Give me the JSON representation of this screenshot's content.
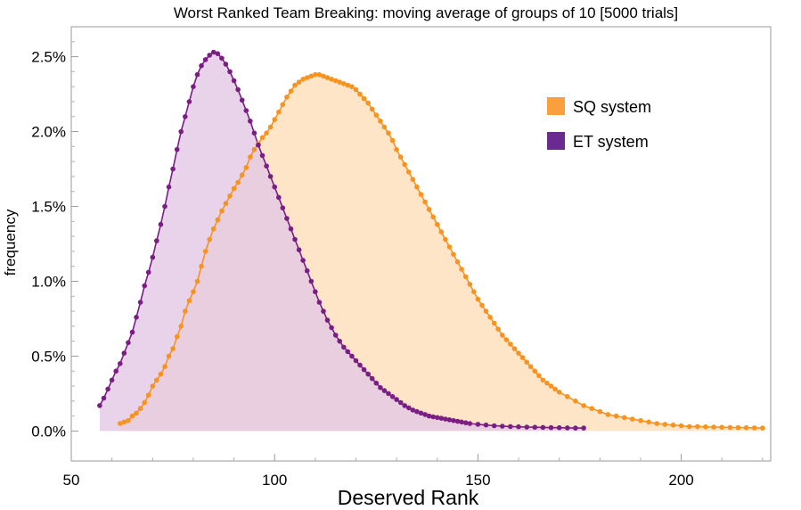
{
  "chart_data": {
    "type": "area",
    "title": "Worst Ranked Team Breaking: moving average of groups of 10   [5000 trials]",
    "xlabel": "Deserved Rank",
    "ylabel": "frequency",
    "xlim": [
      50,
      222
    ],
    "ylim": [
      -0.2,
      2.7
    ],
    "x_ticks": [
      50,
      100,
      150,
      200
    ],
    "y_ticks": [
      0.0,
      0.5,
      1.0,
      1.5,
      2.0,
      2.5
    ],
    "y_tick_labels": [
      "0.0%",
      "0.5%",
      "1.0%",
      "1.5%",
      "2.0%",
      "2.5%"
    ],
    "legend_position": "top-right",
    "series": [
      {
        "name": "SQ system",
        "color": "#F7931E",
        "legend_color": "#F9A03C",
        "fill": "#FFE5C8",
        "points": [
          [
            62,
            0.05
          ],
          [
            63,
            0.06
          ],
          [
            64,
            0.07
          ],
          [
            65,
            0.1
          ],
          [
            66,
            0.12
          ],
          [
            67,
            0.15
          ],
          [
            68,
            0.19
          ],
          [
            69,
            0.24
          ],
          [
            70,
            0.3
          ],
          [
            71,
            0.34
          ],
          [
            72,
            0.38
          ],
          [
            73,
            0.43
          ],
          [
            74,
            0.5
          ],
          [
            75,
            0.55
          ],
          [
            76,
            0.63
          ],
          [
            77,
            0.7
          ],
          [
            78,
            0.8
          ],
          [
            79,
            0.87
          ],
          [
            80,
            0.93
          ],
          [
            81,
            1.0
          ],
          [
            82,
            1.1
          ],
          [
            83,
            1.2
          ],
          [
            84,
            1.28
          ],
          [
            85,
            1.35
          ],
          [
            86,
            1.41
          ],
          [
            87,
            1.47
          ],
          [
            88,
            1.52
          ],
          [
            89,
            1.57
          ],
          [
            90,
            1.62
          ],
          [
            91,
            1.66
          ],
          [
            92,
            1.71
          ],
          [
            93,
            1.76
          ],
          [
            94,
            1.83
          ],
          [
            95,
            1.88
          ],
          [
            96,
            1.92
          ],
          [
            97,
            1.96
          ],
          [
            98,
            1.99
          ],
          [
            99,
            2.03
          ],
          [
            100,
            2.08
          ],
          [
            101,
            2.13
          ],
          [
            102,
            2.18
          ],
          [
            103,
            2.23
          ],
          [
            104,
            2.27
          ],
          [
            105,
            2.31
          ],
          [
            106,
            2.33
          ],
          [
            107,
            2.35
          ],
          [
            108,
            2.36
          ],
          [
            109,
            2.37
          ],
          [
            110,
            2.38
          ],
          [
            111,
            2.38
          ],
          [
            112,
            2.37
          ],
          [
            113,
            2.36
          ],
          [
            114,
            2.35
          ],
          [
            115,
            2.34
          ],
          [
            116,
            2.33
          ],
          [
            117,
            2.32
          ],
          [
            118,
            2.31
          ],
          [
            119,
            2.3
          ],
          [
            120,
            2.28
          ],
          [
            121,
            2.25
          ],
          [
            122,
            2.22
          ],
          [
            123,
            2.19
          ],
          [
            124,
            2.15
          ],
          [
            125,
            2.11
          ],
          [
            126,
            2.07
          ],
          [
            127,
            2.03
          ],
          [
            128,
            1.99
          ],
          [
            129,
            1.94
          ],
          [
            130,
            1.88
          ],
          [
            131,
            1.83
          ],
          [
            132,
            1.78
          ],
          [
            133,
            1.73
          ],
          [
            134,
            1.68
          ],
          [
            135,
            1.63
          ],
          [
            136,
            1.58
          ],
          [
            137,
            1.53
          ],
          [
            138,
            1.48
          ],
          [
            139,
            1.43
          ],
          [
            140,
            1.38
          ],
          [
            141,
            1.33
          ],
          [
            142,
            1.28
          ],
          [
            143,
            1.23
          ],
          [
            144,
            1.18
          ],
          [
            145,
            1.13
          ],
          [
            146,
            1.08
          ],
          [
            147,
            1.03
          ],
          [
            148,
            0.98
          ],
          [
            149,
            0.93
          ],
          [
            150,
            0.88
          ],
          [
            151,
            0.84
          ],
          [
            152,
            0.8
          ],
          [
            153,
            0.76
          ],
          [
            154,
            0.72
          ],
          [
            155,
            0.68
          ],
          [
            156,
            0.64
          ],
          [
            157,
            0.61
          ],
          [
            158,
            0.58
          ],
          [
            159,
            0.55
          ],
          [
            160,
            0.52
          ],
          [
            161,
            0.49
          ],
          [
            162,
            0.46
          ],
          [
            163,
            0.43
          ],
          [
            164,
            0.4
          ],
          [
            165,
            0.37
          ],
          [
            166,
            0.34
          ],
          [
            167,
            0.32
          ],
          [
            168,
            0.3
          ],
          [
            169,
            0.28
          ],
          [
            170,
            0.26
          ],
          [
            172,
            0.23
          ],
          [
            174,
            0.2
          ],
          [
            176,
            0.17
          ],
          [
            178,
            0.15
          ],
          [
            180,
            0.13
          ],
          [
            182,
            0.11
          ],
          [
            184,
            0.1
          ],
          [
            186,
            0.09
          ],
          [
            188,
            0.08
          ],
          [
            190,
            0.07
          ],
          [
            192,
            0.06
          ],
          [
            194,
            0.05
          ],
          [
            196,
            0.045
          ],
          [
            198,
            0.04
          ],
          [
            200,
            0.035
          ],
          [
            202,
            0.03
          ],
          [
            204,
            0.03
          ],
          [
            206,
            0.028
          ],
          [
            208,
            0.026
          ],
          [
            210,
            0.025
          ],
          [
            212,
            0.024
          ],
          [
            214,
            0.023
          ],
          [
            216,
            0.022
          ],
          [
            218,
            0.021
          ],
          [
            220,
            0.02
          ]
        ]
      },
      {
        "name": "ET system",
        "color": "#7B1E84",
        "legend_color": "#6B2A90",
        "fill": "#E3C8E6",
        "points": [
          [
            57,
            0.17
          ],
          [
            58,
            0.22
          ],
          [
            59,
            0.28
          ],
          [
            60,
            0.34
          ],
          [
            61,
            0.4
          ],
          [
            62,
            0.45
          ],
          [
            63,
            0.52
          ],
          [
            64,
            0.59
          ],
          [
            65,
            0.66
          ],
          [
            66,
            0.76
          ],
          [
            67,
            0.86
          ],
          [
            68,
            0.97
          ],
          [
            69,
            1.06
          ],
          [
            70,
            1.16
          ],
          [
            71,
            1.27
          ],
          [
            72,
            1.38
          ],
          [
            73,
            1.5
          ],
          [
            74,
            1.63
          ],
          [
            75,
            1.75
          ],
          [
            76,
            1.88
          ],
          [
            77,
            2.0
          ],
          [
            78,
            2.1
          ],
          [
            79,
            2.2
          ],
          [
            80,
            2.3
          ],
          [
            81,
            2.38
          ],
          [
            82,
            2.44
          ],
          [
            83,
            2.48
          ],
          [
            84,
            2.51
          ],
          [
            85,
            2.53
          ],
          [
            86,
            2.52
          ],
          [
            87,
            2.49
          ],
          [
            88,
            2.45
          ],
          [
            89,
            2.4
          ],
          [
            90,
            2.34
          ],
          [
            91,
            2.28
          ],
          [
            92,
            2.21
          ],
          [
            93,
            2.14
          ],
          [
            94,
            2.07
          ],
          [
            95,
            1.99
          ],
          [
            96,
            1.91
          ],
          [
            97,
            1.84
          ],
          [
            98,
            1.77
          ],
          [
            99,
            1.7
          ],
          [
            100,
            1.63
          ],
          [
            101,
            1.56
          ],
          [
            102,
            1.49
          ],
          [
            103,
            1.42
          ],
          [
            104,
            1.35
          ],
          [
            105,
            1.28
          ],
          [
            106,
            1.21
          ],
          [
            107,
            1.14
          ],
          [
            108,
            1.07
          ],
          [
            109,
            1.0
          ],
          [
            110,
            0.93
          ],
          [
            111,
            0.86
          ],
          [
            112,
            0.8
          ],
          [
            113,
            0.74
          ],
          [
            114,
            0.69
          ],
          [
            115,
            0.64
          ],
          [
            116,
            0.6
          ],
          [
            117,
            0.56
          ],
          [
            118,
            0.53
          ],
          [
            119,
            0.5
          ],
          [
            120,
            0.47
          ],
          [
            121,
            0.44
          ],
          [
            122,
            0.41
          ],
          [
            123,
            0.38
          ],
          [
            124,
            0.35
          ],
          [
            125,
            0.32
          ],
          [
            126,
            0.29
          ],
          [
            127,
            0.27
          ],
          [
            128,
            0.25
          ],
          [
            129,
            0.23
          ],
          [
            130,
            0.21
          ],
          [
            131,
            0.19
          ],
          [
            132,
            0.17
          ],
          [
            133,
            0.155
          ],
          [
            134,
            0.14
          ],
          [
            135,
            0.13
          ],
          [
            136,
            0.12
          ],
          [
            137,
            0.11
          ],
          [
            138,
            0.1
          ],
          [
            139,
            0.095
          ],
          [
            140,
            0.09
          ],
          [
            141,
            0.085
          ],
          [
            142,
            0.08
          ],
          [
            143,
            0.075
          ],
          [
            144,
            0.07
          ],
          [
            145,
            0.065
          ],
          [
            146,
            0.06
          ],
          [
            147,
            0.055
          ],
          [
            148,
            0.05
          ],
          [
            150,
            0.045
          ],
          [
            152,
            0.04
          ],
          [
            154,
            0.035
          ],
          [
            156,
            0.032
          ],
          [
            158,
            0.03
          ],
          [
            160,
            0.028
          ],
          [
            162,
            0.026
          ],
          [
            164,
            0.025
          ],
          [
            166,
            0.024
          ],
          [
            168,
            0.023
          ],
          [
            170,
            0.022
          ],
          [
            172,
            0.021
          ],
          [
            174,
            0.02
          ],
          [
            176,
            0.02
          ]
        ]
      }
    ]
  }
}
